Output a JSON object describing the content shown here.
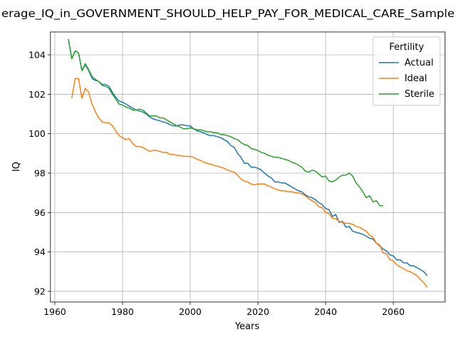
{
  "chart_data": {
    "type": "line",
    "title": "erage_IQ_in_GOVERNMENT_SHOULD_HELP_PAY_FOR_MEDICAL_CARE_Sample",
    "xlabel": "Years",
    "ylabel": "IQ",
    "legend_title": "Fertility",
    "legend_loc": "upper right",
    "grid": true,
    "xlim": [
      1958.7,
      2075.3
    ],
    "xticks": [
      1960,
      1980,
      2000,
      2020,
      2040,
      2060
    ],
    "ylim": [
      91.46,
      105.16
    ],
    "yticks": [
      92,
      94,
      96,
      98,
      100,
      102,
      104
    ],
    "x": [
      1964,
      1965,
      1966,
      1967,
      1968,
      1969,
      1970,
      1971,
      1972,
      1973,
      1974,
      1975,
      1976,
      1977,
      1978,
      1979,
      1980,
      1981,
      1982,
      1983,
      1984,
      1985,
      1986,
      1987,
      1988,
      1989,
      1990,
      1991,
      1992,
      1993,
      1994,
      1995,
      1996,
      1997,
      1998,
      1999,
      2000,
      2001,
      2002,
      2003,
      2004,
      2005,
      2006,
      2007,
      2008,
      2009,
      2010,
      2011,
      2012,
      2013,
      2014,
      2015,
      2016,
      2017,
      2018,
      2019,
      2020,
      2021,
      2022,
      2023,
      2024,
      2025,
      2026,
      2027,
      2028,
      2029,
      2030,
      2031,
      2032,
      2033,
      2034,
      2035,
      2036,
      2037,
      2038,
      2039,
      2040,
      2041,
      2042,
      2043,
      2044,
      2045,
      2046,
      2047,
      2048,
      2049,
      2050,
      2051,
      2052,
      2053,
      2054,
      2055,
      2056,
      2057,
      2058,
      2059,
      2060,
      2061,
      2062,
      2063,
      2064,
      2065,
      2066,
      2067,
      2068,
      2069,
      2070
    ],
    "series": [
      {
        "name": "Actual",
        "color": "#1f77b4",
        "values": [
          104.8,
          103.8,
          104.2,
          104.1,
          103.2,
          103.5,
          103.2,
          102.8,
          102.7,
          102.65,
          102.5,
          102.5,
          102.4,
          102.1,
          101.85,
          101.65,
          101.6,
          101.5,
          101.4,
          101.3,
          101.2,
          101.15,
          101.1,
          101.0,
          100.85,
          100.75,
          100.7,
          100.65,
          100.6,
          100.55,
          100.45,
          100.4,
          100.4,
          100.45,
          100.45,
          100.4,
          100.4,
          100.25,
          100.15,
          100.1,
          100.05,
          99.95,
          99.9,
          99.9,
          99.85,
          99.8,
          99.7,
          99.6,
          99.4,
          99.3,
          99.0,
          98.8,
          98.5,
          98.5,
          98.3,
          98.3,
          98.25,
          98.15,
          98.0,
          97.85,
          97.75,
          97.55,
          97.55,
          97.5,
          97.5,
          97.4,
          97.3,
          97.2,
          97.1,
          97.05,
          96.9,
          96.8,
          96.75,
          96.65,
          96.5,
          96.4,
          96.2,
          96.15,
          95.8,
          95.9,
          95.5,
          95.55,
          95.25,
          95.3,
          95.05,
          95.0,
          94.95,
          94.9,
          94.8,
          94.7,
          94.65,
          94.45,
          94.3,
          94.15,
          94.05,
          93.85,
          93.8,
          93.6,
          93.6,
          93.45,
          93.45,
          93.3,
          93.3,
          93.2,
          93.1,
          93.0,
          92.8
        ]
      },
      {
        "name": "Ideal",
        "color": "#ff7f0e",
        "values": [
          null,
          101.8,
          102.8,
          102.8,
          101.8,
          102.3,
          102.1,
          101.5,
          101.1,
          100.8,
          100.6,
          100.55,
          100.55,
          100.4,
          100.15,
          99.9,
          99.8,
          99.7,
          99.75,
          99.5,
          99.35,
          99.35,
          99.3,
          99.2,
          99.1,
          99.15,
          99.15,
          99.1,
          99.05,
          99.05,
          98.95,
          98.95,
          98.9,
          98.9,
          98.85,
          98.85,
          98.85,
          98.8,
          98.7,
          98.65,
          98.55,
          98.5,
          98.45,
          98.4,
          98.35,
          98.3,
          98.25,
          98.15,
          98.1,
          98.05,
          97.9,
          97.7,
          97.6,
          97.55,
          97.45,
          97.4,
          97.45,
          97.45,
          97.45,
          97.35,
          97.3,
          97.2,
          97.15,
          97.1,
          97.1,
          97.05,
          97.05,
          97.0,
          97.0,
          96.95,
          96.85,
          96.7,
          96.6,
          96.5,
          96.3,
          96.25,
          96.0,
          95.95,
          95.7,
          95.7,
          95.55,
          95.5,
          95.45,
          95.45,
          95.4,
          95.3,
          95.25,
          95.15,
          95.05,
          94.85,
          94.75,
          94.45,
          94.35,
          93.95,
          93.9,
          93.6,
          93.55,
          93.35,
          93.25,
          93.15,
          93.05,
          93.0,
          92.9,
          92.8,
          92.6,
          92.45,
          92.2
        ]
      },
      {
        "name": "Sterile",
        "color": "#2ca02c",
        "values": [
          104.8,
          103.8,
          104.2,
          104.1,
          103.2,
          103.55,
          103.25,
          102.9,
          102.75,
          102.65,
          102.45,
          102.4,
          102.3,
          102.0,
          101.75,
          101.5,
          101.45,
          101.35,
          101.3,
          101.2,
          101.2,
          101.25,
          101.2,
          101.05,
          100.9,
          100.9,
          100.9,
          100.8,
          100.8,
          100.7,
          100.6,
          100.5,
          100.4,
          100.35,
          100.25,
          100.25,
          100.3,
          100.25,
          100.2,
          100.2,
          100.15,
          100.1,
          100.1,
          100.05,
          100.05,
          99.95,
          99.95,
          99.9,
          99.85,
          99.75,
          99.7,
          99.55,
          99.45,
          99.4,
          99.25,
          99.2,
          99.15,
          99.05,
          99.0,
          98.9,
          98.85,
          98.8,
          98.8,
          98.75,
          98.7,
          98.65,
          98.55,
          98.5,
          98.4,
          98.3,
          98.1,
          98.05,
          98.15,
          98.1,
          97.95,
          97.8,
          97.85,
          97.6,
          97.55,
          97.65,
          97.8,
          97.9,
          97.9,
          98.0,
          97.85,
          97.5,
          97.3,
          97.05,
          96.75,
          96.85,
          96.55,
          96.6,
          96.35,
          96.35,
          null,
          null,
          null,
          null,
          null,
          null,
          null,
          null,
          null,
          null,
          null,
          null,
          null
        ]
      }
    ]
  }
}
